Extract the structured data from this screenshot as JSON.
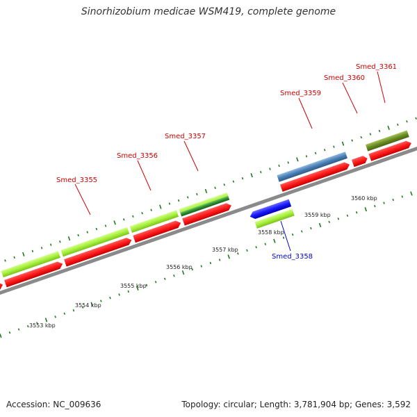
{
  "title": "Sinorhizobium medicae WSM419, complete genome",
  "footer": {
    "accession": "Accession: NC_009636",
    "stats": "Topology: circular; Length: 3,781,904 bp; Genes: 3,592"
  },
  "ruler": {
    "unit": "kbp",
    "labels": [
      "3553 kbp",
      "3554 kbp",
      "3555 kbp",
      "3556 kbp",
      "3557 kbp",
      "3558 kbp",
      "3559 kbp",
      "3560 kbp"
    ]
  },
  "genes": [
    {
      "name": "Smed_3355",
      "strand": "+",
      "label_color": "#cc0000"
    },
    {
      "name": "Smed_3356",
      "strand": "+",
      "label_color": "#cc0000"
    },
    {
      "name": "Smed_3357",
      "strand": "+",
      "label_color": "#cc0000"
    },
    {
      "name": "Smed_3358",
      "strand": "-",
      "label_color": "#0000cc"
    },
    {
      "name": "Smed_3359",
      "strand": "+",
      "label_color": "#cc0000"
    },
    {
      "name": "Smed_3360",
      "strand": "+",
      "label_color": "#cc0000"
    },
    {
      "name": "Smed_3361",
      "strand": "+",
      "label_color": "#cc0000"
    }
  ],
  "colors": {
    "cds": "#ff1a1a",
    "cog_lime": "#a6f03c",
    "cog_green": "#2e8b2e",
    "cog_blue": "#4a7fb5",
    "cog_olive": "#6b8e23",
    "minus_cds": "#1a1aff",
    "backbone": "#8a8a8a",
    "tick": "#1e7a1e"
  }
}
